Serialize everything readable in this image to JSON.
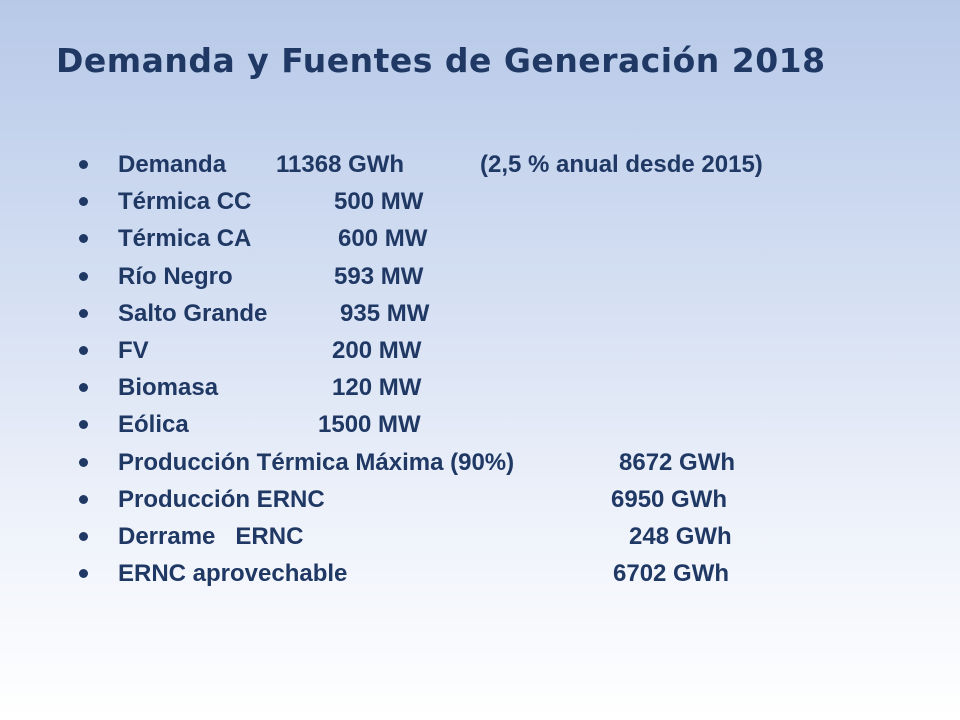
{
  "slide": {
    "title": "Demanda y Fuentes de Generación 2018",
    "items": [
      {
        "label": "Demanda",
        "value": "11368 GWh",
        "note": "(2,5 % anual desde 2015)"
      },
      {
        "label": "Térmica CC",
        "value": "500 MW"
      },
      {
        "label": "Térmica CA",
        "value": "600 MW"
      },
      {
        "label": "Río Negro",
        "value": "593 MW"
      },
      {
        "label": "Salto Grande",
        "value": "935 MW"
      },
      {
        "label": "FV",
        "value": "200 MW"
      },
      {
        "label": "Biomasa",
        "value": "120 MW"
      },
      {
        "label": "Eólica",
        "value": "1500 MW"
      },
      {
        "label": "Producción Térmica Máxima (90%)",
        "value": "8672 GWh"
      },
      {
        "label": "Producción ERNC",
        "value": "6950 GWh"
      },
      {
        "label": "Derrame   ERNC",
        "value": "248 GWh"
      },
      {
        "label": "ERNC aprovechable",
        "value": "6702 GWh"
      }
    ]
  },
  "colors": {
    "title": "#1f3864",
    "text": "#1f3864",
    "background_top": "#b7c9e8",
    "background_bottom": "#ffffff"
  }
}
